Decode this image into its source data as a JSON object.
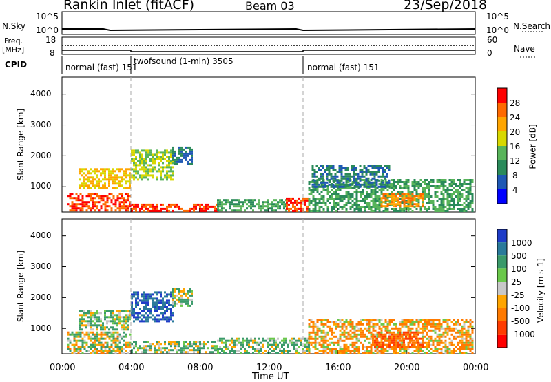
{
  "header": {
    "site": "Rankin Inlet (fitACF)",
    "beam": "Beam 03",
    "date": "23/Sep/2018"
  },
  "strips": {
    "nsky_label": "N.Sky",
    "nsky_ticks": [
      "10^5",
      "10^0"
    ],
    "nsearch_label": "N.Search",
    "nsearch_ticks": [
      "10^5",
      "10^0"
    ],
    "freq_label": "Freq.",
    "freq_unit": "[MHz]",
    "freq_ticks": [
      "18",
      "8"
    ],
    "nave_label": "Nave",
    "nave_ticks": [
      "60",
      "0"
    ],
    "cpid_label": "CPID"
  },
  "cpid_segments": [
    {
      "start_hour": 0,
      "label": "normal (fast)",
      "id": "151"
    },
    {
      "start_hour": 4,
      "label": "twofsound (1-min)",
      "id": "3505"
    },
    {
      "start_hour": 14,
      "label": "normal (fast)",
      "id": "151"
    }
  ],
  "time_axis": {
    "title": "Time UT",
    "ticks": [
      "00:00",
      "04:00",
      "08:00",
      "12:00",
      "16:00",
      "20:00",
      "00:00"
    ],
    "range_hours": [
      0,
      24
    ]
  },
  "range_axis": {
    "title": "Slant Range [km]",
    "ticks": [
      "1000",
      "2000",
      "3000",
      "4000"
    ],
    "tick_values": [
      1000,
      2000,
      3000,
      4000
    ],
    "range_km": [
      180,
      4550
    ]
  },
  "power_scale": {
    "title": "Power [dB]",
    "ticks": [
      "4",
      "8",
      "12",
      "16",
      "20",
      "24",
      "28"
    ],
    "colors": [
      "#0000ff",
      "#1e58b4",
      "#2a8a5a",
      "#58b45a",
      "#d8d800",
      "#ffa500",
      "#ff6a00",
      "#ff0000"
    ]
  },
  "velocity_scale": {
    "title": "Velocity [m s-1]",
    "ticks": [
      "1000",
      "500",
      "100",
      "25",
      "-25",
      "-100",
      "-500",
      "-1000"
    ],
    "colors": [
      "#1e3cc8",
      "#2a7a9a",
      "#3a9a6a",
      "#6ac84a",
      "#c8c8c8",
      "#ffa500",
      "#ff7a00",
      "#ff3c00",
      "#ff0000"
    ]
  },
  "chart_data": {
    "type": "heatmap",
    "x_range": [
      0,
      24
    ],
    "y_range": [
      180,
      4550
    ],
    "x_unit": "hours UT",
    "y_unit": "km",
    "panels": [
      {
        "quantity": "Power [dB]",
        "regions": [
          {
            "x": [
              0.3,
              4.0
            ],
            "y": [
              200,
              800
            ],
            "value": 28
          },
          {
            "x": [
              4.0,
              9.0
            ],
            "y": [
              200,
              450
            ],
            "value": 28
          },
          {
            "x": [
              9.0,
              13.0
            ],
            "y": [
              200,
              600
            ],
            "value": 12
          },
          {
            "x": [
              13.0,
              14.3
            ],
            "y": [
              200,
              650
            ],
            "value": 28
          },
          {
            "x": [
              14.3,
              23.8
            ],
            "y": [
              200,
              1250
            ],
            "value": 12
          },
          {
            "x": [
              1.0,
              4.0
            ],
            "y": [
              950,
              1600
            ],
            "value": 20
          },
          {
            "x": [
              4.0,
              6.5
            ],
            "y": [
              1250,
              2200
            ],
            "value": 16
          },
          {
            "x": [
              6.4,
              7.6
            ],
            "y": [
              1700,
              2300
            ],
            "value": 8
          },
          {
            "x": [
              18.5,
              21.0
            ],
            "y": [
              350,
              800
            ],
            "value": 24
          },
          {
            "x": [
              14.5,
              19.0
            ],
            "y": [
              1000,
              1700
            ],
            "value": 8
          }
        ]
      },
      {
        "quantity": "Velocity [m s-1]",
        "regions": [
          {
            "x": [
              0.3,
              4.0
            ],
            "y": [
              200,
              900
            ],
            "value": 25
          },
          {
            "x": [
              4.0,
              9.0
            ],
            "y": [
              200,
              600
            ],
            "value": 100
          },
          {
            "x": [
              1.0,
              4.0
            ],
            "y": [
              950,
              1600
            ],
            "value": 100
          },
          {
            "x": [
              4.0,
              6.5
            ],
            "y": [
              1250,
              2200
            ],
            "value": 1000
          },
          {
            "x": [
              6.4,
              7.6
            ],
            "y": [
              1700,
              2300
            ],
            "value": 100
          },
          {
            "x": [
              9.0,
              14.3
            ],
            "y": [
              200,
              700
            ],
            "value": 100
          },
          {
            "x": [
              14.3,
              23.8
            ],
            "y": [
              200,
              1300
            ],
            "value": -100
          },
          {
            "x": [
              18.0,
              21.0
            ],
            "y": [
              400,
              900
            ],
            "value": -500
          }
        ]
      }
    ]
  }
}
